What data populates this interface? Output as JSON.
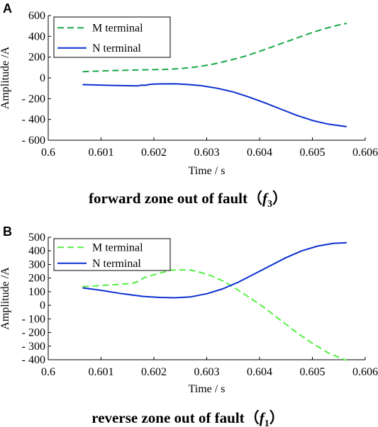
{
  "chart_data": [
    {
      "panel_label": "A",
      "type": "line",
      "xlabel": "Time / s",
      "ylabel": "Amplitude /A",
      "xlim": [
        0.6,
        0.606
      ],
      "ylim": [
        -600,
        600
      ],
      "x_ticks": [
        "0.6",
        "0.601",
        "0.602",
        "0.603",
        "0.604",
        "0.605",
        "0.606"
      ],
      "x_tick_values": [
        0.6,
        0.601,
        0.602,
        0.603,
        0.604,
        0.605,
        0.606
      ],
      "y_ticks": [
        "600",
        "400",
        "200",
        "0",
        "- 200",
        "- 400",
        "- 600"
      ],
      "y_tick_values": [
        600,
        400,
        200,
        0,
        -200,
        -400,
        -600
      ],
      "legend_position": "top-left",
      "grid": false,
      "series": [
        {
          "name": "M terminal",
          "color": "#1aa84a",
          "dash": "dashed",
          "points": [
            [
              0.60065,
              60
            ],
            [
              0.6012,
              70
            ],
            [
              0.6018,
              78
            ],
            [
              0.6022,
              82
            ],
            [
              0.6025,
              90
            ],
            [
              0.6028,
              105
            ],
            [
              0.6031,
              130
            ],
            [
              0.6034,
              165
            ],
            [
              0.6037,
              205
            ],
            [
              0.604,
              255
            ],
            [
              0.6043,
              310
            ],
            [
              0.6046,
              365
            ],
            [
              0.6049,
              420
            ],
            [
              0.6052,
              470
            ],
            [
              0.6055,
              510
            ],
            [
              0.60565,
              525
            ]
          ]
        },
        {
          "name": "N terminal",
          "color": "#0a2fcf",
          "dash": "solid",
          "points": [
            [
              0.60065,
              -65
            ],
            [
              0.6012,
              -72
            ],
            [
              0.6017,
              -77
            ],
            [
              0.60175,
              -70
            ],
            [
              0.60185,
              -71
            ],
            [
              0.6019,
              -64
            ],
            [
              0.602,
              -60
            ],
            [
              0.6021,
              -58
            ],
            [
              0.6024,
              -57
            ],
            [
              0.6026,
              -62
            ],
            [
              0.6029,
              -75
            ],
            [
              0.6032,
              -100
            ],
            [
              0.6035,
              -135
            ],
            [
              0.6038,
              -185
            ],
            [
              0.6041,
              -240
            ],
            [
              0.6044,
              -300
            ],
            [
              0.6047,
              -360
            ],
            [
              0.605,
              -410
            ],
            [
              0.6053,
              -445
            ],
            [
              0.60565,
              -470
            ]
          ]
        }
      ],
      "caption": {
        "text": "forward zone out of fault（",
        "symbol": "f",
        "subscript": "3",
        "close": "）"
      }
    },
    {
      "panel_label": "B",
      "type": "line",
      "xlabel": "Time / s",
      "ylabel": "Amplitude /A",
      "xlim": [
        0.6,
        0.606
      ],
      "ylim": [
        -400,
        500
      ],
      "x_ticks": [
        "0.6",
        "0.601",
        "0.602",
        "0.603",
        "0.604",
        "0.605",
        "0.606"
      ],
      "x_tick_values": [
        0.6,
        0.601,
        0.602,
        0.603,
        0.604,
        0.605,
        0.606
      ],
      "y_ticks": [
        "500",
        "400",
        "300",
        "200",
        "100",
        "0",
        "- 100",
        "- 200",
        "- 300",
        "- 400"
      ],
      "y_tick_values": [
        500,
        400,
        300,
        200,
        100,
        0,
        -100,
        -200,
        -300,
        -400
      ],
      "legend_position": "top-left",
      "grid": false,
      "series": [
        {
          "name": "M terminal",
          "color": "#55ee44",
          "dash": "dashed",
          "points": [
            [
              0.60065,
              137
            ],
            [
              0.601,
              145
            ],
            [
              0.6014,
              155
            ],
            [
              0.6016,
              162
            ],
            [
              0.6017,
              175
            ],
            [
              0.6018,
              200
            ],
            [
              0.602,
              225
            ],
            [
              0.6022,
              245
            ],
            [
              0.6023,
              258
            ],
            [
              0.6025,
              260
            ],
            [
              0.6027,
              258
            ],
            [
              0.6029,
              240
            ],
            [
              0.6031,
              215
            ],
            [
              0.6033,
              180
            ],
            [
              0.6035,
              135
            ],
            [
              0.6038,
              60
            ],
            [
              0.6041,
              -20
            ],
            [
              0.6044,
              -110
            ],
            [
              0.6047,
              -200
            ],
            [
              0.605,
              -280
            ],
            [
              0.6053,
              -350
            ],
            [
              0.60565,
              -405
            ]
          ]
        },
        {
          "name": "N terminal",
          "color": "#0a2fcf",
          "dash": "solid",
          "points": [
            [
              0.60065,
              128
            ],
            [
              0.601,
              110
            ],
            [
              0.6014,
              85
            ],
            [
              0.6018,
              65
            ],
            [
              0.6021,
              58
            ],
            [
              0.6024,
              55
            ],
            [
              0.6027,
              62
            ],
            [
              0.603,
              85
            ],
            [
              0.6033,
              120
            ],
            [
              0.6036,
              170
            ],
            [
              0.6039,
              230
            ],
            [
              0.6042,
              290
            ],
            [
              0.6045,
              350
            ],
            [
              0.6048,
              400
            ],
            [
              0.6051,
              435
            ],
            [
              0.6054,
              455
            ],
            [
              0.60565,
              460
            ]
          ]
        }
      ],
      "caption": {
        "text": "reverse zone out of fault（",
        "symbol": "f",
        "subscript": "1",
        "close": "）"
      }
    }
  ]
}
